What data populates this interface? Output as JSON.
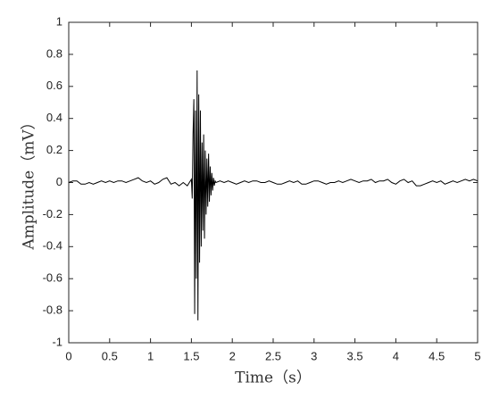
{
  "chart_data": {
    "type": "line",
    "xlabel": "Time（s）",
    "ylabel": "Amplitude（mV）",
    "x": [
      0,
      0.05,
      0.1,
      0.15,
      0.2,
      0.25,
      0.3,
      0.35,
      0.4,
      0.45,
      0.5,
      0.55,
      0.6,
      0.65,
      0.7,
      0.75,
      0.8,
      0.85,
      0.9,
      0.95,
      1,
      1.05,
      1.1,
      1.15,
      1.2,
      1.25,
      1.3,
      1.35,
      1.4,
      1.45,
      1.5,
      1.51,
      1.52,
      1.53,
      1.54,
      1.55,
      1.56,
      1.57,
      1.58,
      1.59,
      1.6,
      1.61,
      1.62,
      1.63,
      1.64,
      1.65,
      1.66,
      1.67,
      1.68,
      1.69,
      1.7,
      1.71,
      1.72,
      1.73,
      1.74,
      1.75,
      1.76,
      1.77,
      1.78,
      1.79,
      1.8,
      1.85,
      1.9,
      1.95,
      2,
      2.05,
      2.1,
      2.15,
      2.2,
      2.25,
      2.3,
      2.35,
      2.4,
      2.45,
      2.5,
      2.55,
      2.6,
      2.65,
      2.7,
      2.75,
      2.8,
      2.85,
      2.9,
      2.95,
      3,
      3.05,
      3.1,
      3.15,
      3.2,
      3.25,
      3.3,
      3.35,
      3.4,
      3.45,
      3.5,
      3.55,
      3.6,
      3.65,
      3.7,
      3.75,
      3.8,
      3.85,
      3.9,
      3.95,
      4,
      4.05,
      4.1,
      4.15,
      4.2,
      4.25,
      4.3,
      4.35,
      4.4,
      4.45,
      4.5,
      4.55,
      4.6,
      4.65,
      4.7,
      4.75,
      4.8,
      4.85,
      4.9,
      4.95,
      5
    ],
    "values": [
      0,
      0.01,
      0.01,
      -0.01,
      -0.01,
      0,
      -0.01,
      0,
      0.01,
      0,
      0.01,
      0,
      0.01,
      0.01,
      0,
      0.01,
      0.02,
      0.03,
      0.01,
      0,
      0.01,
      -0.01,
      0,
      0.02,
      0.03,
      -0.01,
      0,
      -0.02,
      0,
      -0.02,
      0.02,
      -0.1,
      0.3,
      0.52,
      -0.82,
      0.45,
      -0.6,
      0.7,
      -0.86,
      0.55,
      -0.5,
      0.45,
      -0.4,
      0.25,
      -0.3,
      0.3,
      -0.35,
      0.2,
      -0.2,
      0.15,
      -0.15,
      0.18,
      -0.12,
      0.1,
      -0.08,
      0.06,
      -0.05,
      0.03,
      -0.02,
      0.01,
      0,
      0.01,
      0,
      0.01,
      0,
      -0.01,
      0,
      0.01,
      0,
      0.01,
      0.01,
      0,
      0,
      0.01,
      0,
      -0.01,
      -0.01,
      0,
      0.01,
      0,
      0.01,
      -0.01,
      -0.01,
      0,
      0.01,
      0.01,
      0,
      -0.01,
      0,
      0,
      0.01,
      0,
      0.01,
      0.02,
      0.01,
      0,
      0.01,
      0.01,
      0.02,
      0,
      0.01,
      0.01,
      0.02,
      0,
      -0.01,
      0.01,
      0.02,
      0,
      0.01,
      -0.02,
      -0.02,
      -0.01,
      0,
      0.01,
      0,
      0.01,
      -0.01,
      0,
      0.01,
      0,
      0.01,
      0.02,
      0.01,
      0.02,
      0.01
    ],
    "color": "#000000",
    "xlim": [
      0,
      5
    ],
    "xticks": [
      0,
      0.5,
      1,
      1.5,
      2,
      2.5,
      3,
      3.5,
      4,
      4.5,
      5
    ],
    "ylim": [
      -1,
      1
    ],
    "yticks": [
      -1,
      -0.8,
      -0.6,
      -0.4,
      -0.2,
      0,
      0.2,
      0.4,
      0.6,
      0.8,
      1
    ],
    "grid": false
  }
}
